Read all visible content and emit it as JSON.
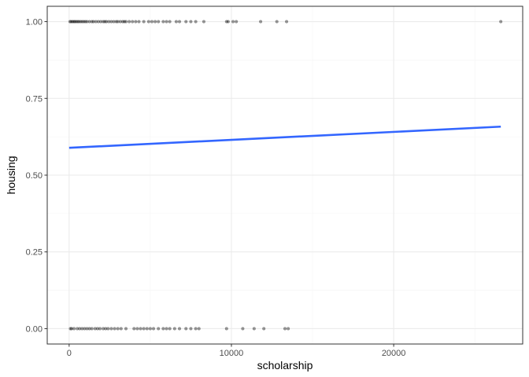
{
  "chart_data": {
    "type": "scatter",
    "title": "",
    "xlabel": "scholarship",
    "ylabel": "housing",
    "xlim": [
      -1350,
      27950
    ],
    "ylim": [
      -0.05,
      1.05
    ],
    "x_ticks": [
      0,
      10000,
      20000
    ],
    "x_tick_labels": [
      "0",
      "10000",
      "20000"
    ],
    "y_ticks": [
      0,
      0.25,
      0.5,
      0.75,
      1
    ],
    "y_tick_labels": [
      "0.00",
      "0.25",
      "0.50",
      "0.75",
      "1.00"
    ],
    "grid": true,
    "legend": "none",
    "colors": {
      "points": "#000000",
      "fit_line": "#3366FF",
      "panel_border": "#333333",
      "grid_major": "#ebebeb",
      "grid_minor": "#f5f5f5"
    },
    "series": [
      {
        "points": [
          {
            "x": 50,
            "y": 1
          },
          {
            "x": 120,
            "y": 1
          },
          {
            "x": 200,
            "y": 1
          },
          {
            "x": 280,
            "y": 1
          },
          {
            "x": 350,
            "y": 1
          },
          {
            "x": 430,
            "y": 1
          },
          {
            "x": 520,
            "y": 1
          },
          {
            "x": 600,
            "y": 1
          },
          {
            "x": 700,
            "y": 1
          },
          {
            "x": 800,
            "y": 1
          },
          {
            "x": 900,
            "y": 1
          },
          {
            "x": 1000,
            "y": 1
          },
          {
            "x": 1100,
            "y": 1
          },
          {
            "x": 1250,
            "y": 1
          },
          {
            "x": 1400,
            "y": 1
          },
          {
            "x": 1500,
            "y": 1
          },
          {
            "x": 1650,
            "y": 1
          },
          {
            "x": 1800,
            "y": 1
          },
          {
            "x": 1950,
            "y": 1
          },
          {
            "x": 2100,
            "y": 1
          },
          {
            "x": 2200,
            "y": 1
          },
          {
            "x": 2300,
            "y": 1
          },
          {
            "x": 2450,
            "y": 1
          },
          {
            "x": 2600,
            "y": 1
          },
          {
            "x": 2750,
            "y": 1
          },
          {
            "x": 2900,
            "y": 1
          },
          {
            "x": 3000,
            "y": 1
          },
          {
            "x": 3150,
            "y": 1
          },
          {
            "x": 3300,
            "y": 1
          },
          {
            "x": 3400,
            "y": 1
          },
          {
            "x": 3500,
            "y": 1
          },
          {
            "x": 3700,
            "y": 1
          },
          {
            "x": 3900,
            "y": 1
          },
          {
            "x": 4100,
            "y": 1
          },
          {
            "x": 4300,
            "y": 1
          },
          {
            "x": 4600,
            "y": 1
          },
          {
            "x": 4900,
            "y": 1
          },
          {
            "x": 5100,
            "y": 1
          },
          {
            "x": 5300,
            "y": 1
          },
          {
            "x": 5500,
            "y": 1
          },
          {
            "x": 5800,
            "y": 1
          },
          {
            "x": 6000,
            "y": 1
          },
          {
            "x": 6200,
            "y": 1
          },
          {
            "x": 6600,
            "y": 1
          },
          {
            "x": 6800,
            "y": 1
          },
          {
            "x": 7200,
            "y": 1
          },
          {
            "x": 7500,
            "y": 1
          },
          {
            "x": 7800,
            "y": 1
          },
          {
            "x": 8300,
            "y": 1
          },
          {
            "x": 9700,
            "y": 1
          },
          {
            "x": 9800,
            "y": 1
          },
          {
            "x": 10100,
            "y": 1
          },
          {
            "x": 10300,
            "y": 1
          },
          {
            "x": 11800,
            "y": 1
          },
          {
            "x": 12800,
            "y": 1
          },
          {
            "x": 13400,
            "y": 1
          },
          {
            "x": 26600,
            "y": 1
          },
          {
            "x": 80,
            "y": 0
          },
          {
            "x": 150,
            "y": 0
          },
          {
            "x": 300,
            "y": 0
          },
          {
            "x": 500,
            "y": 0
          },
          {
            "x": 650,
            "y": 0
          },
          {
            "x": 800,
            "y": 0
          },
          {
            "x": 950,
            "y": 0
          },
          {
            "x": 1100,
            "y": 0
          },
          {
            "x": 1250,
            "y": 0
          },
          {
            "x": 1400,
            "y": 0
          },
          {
            "x": 1600,
            "y": 0
          },
          {
            "x": 1750,
            "y": 0
          },
          {
            "x": 1900,
            "y": 0
          },
          {
            "x": 2100,
            "y": 0
          },
          {
            "x": 2250,
            "y": 0
          },
          {
            "x": 2400,
            "y": 0
          },
          {
            "x": 2600,
            "y": 0
          },
          {
            "x": 2800,
            "y": 0
          },
          {
            "x": 3000,
            "y": 0
          },
          {
            "x": 3200,
            "y": 0
          },
          {
            "x": 3500,
            "y": 0
          },
          {
            "x": 4000,
            "y": 0
          },
          {
            "x": 4200,
            "y": 0
          },
          {
            "x": 4400,
            "y": 0
          },
          {
            "x": 4600,
            "y": 0
          },
          {
            "x": 4800,
            "y": 0
          },
          {
            "x": 5000,
            "y": 0
          },
          {
            "x": 5200,
            "y": 0
          },
          {
            "x": 5500,
            "y": 0
          },
          {
            "x": 5800,
            "y": 0
          },
          {
            "x": 6000,
            "y": 0
          },
          {
            "x": 6200,
            "y": 0
          },
          {
            "x": 6500,
            "y": 0
          },
          {
            "x": 6800,
            "y": 0
          },
          {
            "x": 7200,
            "y": 0
          },
          {
            "x": 7500,
            "y": 0
          },
          {
            "x": 7800,
            "y": 0
          },
          {
            "x": 8000,
            "y": 0
          },
          {
            "x": 9700,
            "y": 0
          },
          {
            "x": 10700,
            "y": 0
          },
          {
            "x": 11400,
            "y": 0
          },
          {
            "x": 12000,
            "y": 0
          },
          {
            "x": 13300,
            "y": 0
          },
          {
            "x": 13500,
            "y": 0
          }
        ]
      }
    ],
    "fit_line": {
      "x": [
        0,
        26600
      ],
      "y": [
        0.589,
        0.658
      ]
    }
  }
}
